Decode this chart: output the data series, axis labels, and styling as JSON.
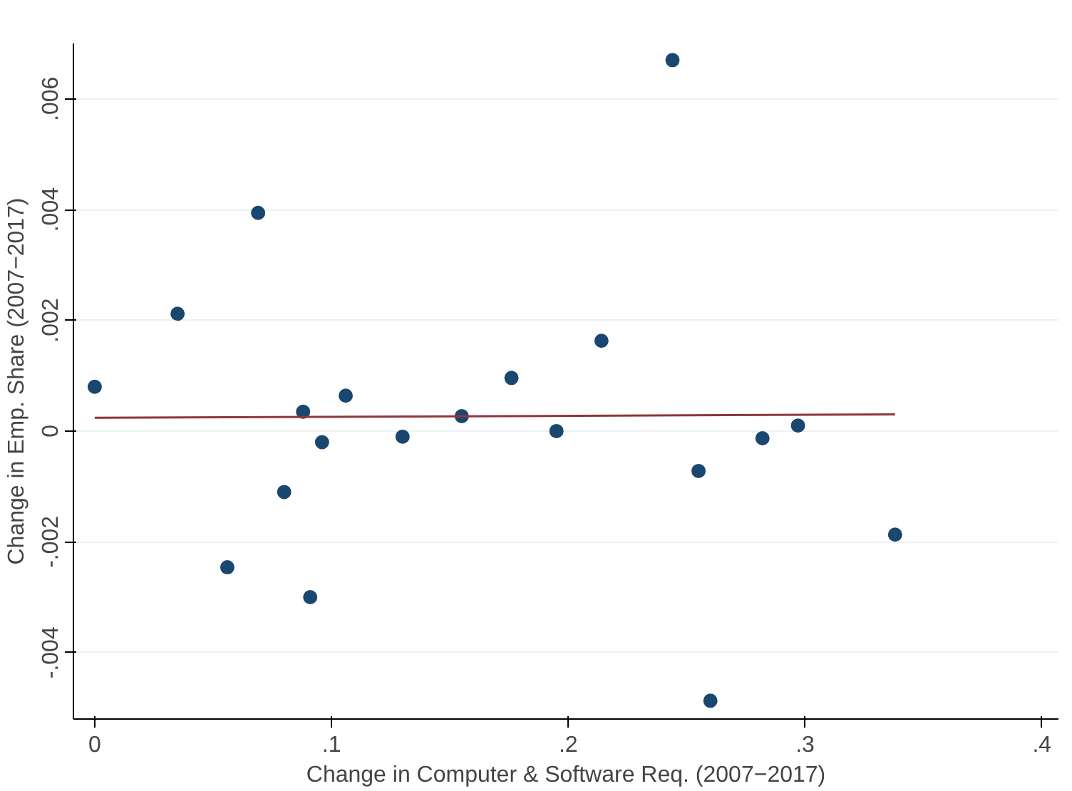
{
  "chart_data": {
    "type": "scatter",
    "xlabel": "Change in Computer & Software Req. (2007−2017)",
    "ylabel": "Change in Emp. Share (2007−2017)",
    "xlim": [
      -0.009,
      0.407
    ],
    "ylim": [
      -0.0052,
      0.007
    ],
    "xticks": [
      {
        "value": 0,
        "label": "0"
      },
      {
        "value": 0.1,
        "label": ".1"
      },
      {
        "value": 0.2,
        "label": ".2"
      },
      {
        "value": 0.3,
        "label": ".3"
      },
      {
        "value": 0.4,
        "label": ".4"
      }
    ],
    "yticks": [
      {
        "value": -0.004,
        "label": "-.004"
      },
      {
        "value": -0.002,
        "label": "-.002"
      },
      {
        "value": 0,
        "label": "0"
      },
      {
        "value": 0.002,
        "label": ".002"
      },
      {
        "value": 0.004,
        "label": ".004"
      },
      {
        "value": 0.006,
        "label": ".006"
      }
    ],
    "grid": "y",
    "series": [
      {
        "marker": "circle",
        "color": "#1a476f",
        "x": [
          0,
          0.035,
          0.056,
          0.069,
          0.08,
          0.088,
          0.091,
          0.096,
          0.106,
          0.13,
          0.155,
          0.176,
          0.195,
          0.214,
          0.244,
          0.255,
          0.26,
          0.282,
          0.297,
          0.338
        ],
        "values": [
          0.0008,
          0.00212,
          -0.00246,
          0.00394,
          -0.0011,
          0.00035,
          -0.003,
          -0.0002,
          0.00064,
          -0.0001,
          0.00027,
          0.00096,
          0.0,
          0.00163,
          0.0067,
          -0.00072,
          -0.00487,
          -0.00013,
          0.0001,
          -0.00187
        ]
      },
      {
        "type": "line",
        "color": "#90353b",
        "x": [
          0,
          0.338
        ],
        "values": [
          0.00024,
          0.0003
        ]
      }
    ]
  }
}
